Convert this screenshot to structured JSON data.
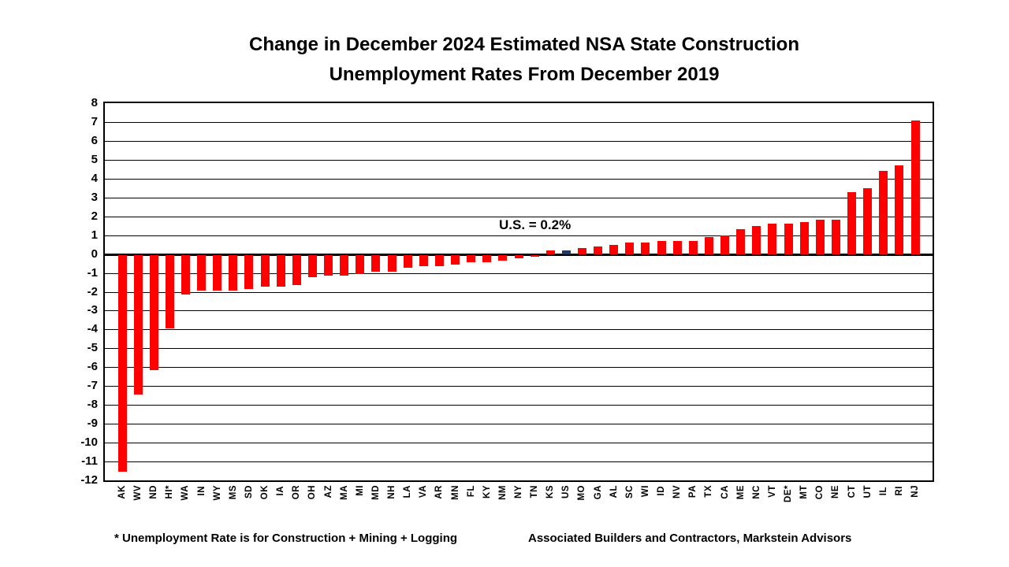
{
  "title": {
    "line1": "Change in December 2024 Estimated NSA State Construction",
    "line2": "Unemployment Rates From December 2019"
  },
  "chart_data": {
    "type": "bar",
    "title": "Change in December 2024 Estimated NSA State Construction Unemployment Rates From December 2019",
    "xlabel": "",
    "ylabel": "",
    "ylim": [
      -12,
      8
    ],
    "ytick_step": 1,
    "yticks": [
      8,
      7,
      6,
      5,
      4,
      3,
      2,
      1,
      0,
      -1,
      -2,
      -3,
      -4,
      -5,
      -6,
      -7,
      -8,
      -9,
      -10,
      -11,
      -12
    ],
    "grid": true,
    "legend": "none",
    "annotation": "U.S. = 0.2%",
    "bar_color": "#FF0000",
    "highlight_color": "#1F3864",
    "highlight_category": "US",
    "categories": [
      "AK",
      "WV",
      "ND",
      "HI*",
      "WA",
      "IN",
      "WY",
      "MS",
      "SD",
      "OK",
      "IA",
      "OR",
      "OH",
      "AZ",
      "MA",
      "MI",
      "MD",
      "NH",
      "LA",
      "VA",
      "AR",
      "MN",
      "FL",
      "KY",
      "NM",
      "NY",
      "TN",
      "KS",
      "US",
      "MO",
      "GA",
      "AL",
      "SC",
      "WI",
      "ID",
      "NV",
      "PA",
      "TX",
      "CA",
      "ME",
      "NC",
      "VT",
      "DE*",
      "MT",
      "CO",
      "NE",
      "CT",
      "UT",
      "IL",
      "RI",
      "NJ"
    ],
    "values": [
      -11.5,
      -7.4,
      -6.1,
      -3.9,
      -2.1,
      -1.9,
      -1.9,
      -1.9,
      -1.8,
      -1.7,
      -1.7,
      -1.6,
      -1.2,
      -1.1,
      -1.1,
      -1.0,
      -0.9,
      -0.9,
      -0.7,
      -0.6,
      -0.6,
      -0.5,
      -0.4,
      -0.4,
      -0.3,
      -0.2,
      -0.1,
      0.2,
      0.2,
      0.3,
      0.4,
      0.5,
      0.6,
      0.6,
      0.7,
      0.7,
      0.7,
      0.9,
      1.0,
      1.3,
      1.5,
      1.6,
      1.6,
      1.7,
      1.8,
      1.8,
      3.3,
      3.5,
      4.4,
      4.7,
      7.1
    ]
  },
  "footnotes": {
    "note": "* Unemployment Rate is for Construction + Mining + Logging",
    "source": "Associated Builders and Contractors, Markstein Advisors"
  }
}
